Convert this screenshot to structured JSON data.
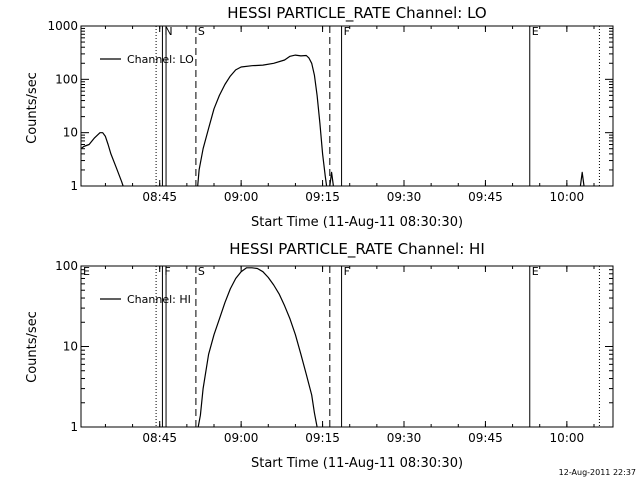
{
  "footer_timestamp": "12-Aug-2011 22:37",
  "chart_data": [
    {
      "type": "line",
      "title": "HESSI PARTICLE_RATE Channel: LO",
      "xlabel": "Start Time (11-Aug-11 08:30:30)",
      "ylabel": "Counts/sec",
      "yscale": "log",
      "ylim": [
        1,
        1000
      ],
      "xlim_minutes_after_0830": [
        0.5,
        98.5
      ],
      "x_ticks": [
        "08:45",
        "09:00",
        "09:15",
        "09:30",
        "09:45",
        "10:00"
      ],
      "y_ticks": [
        "1",
        "10",
        "100",
        "1000"
      ],
      "legend": "Channel: LO",
      "series": [
        {
          "name": "Channel: LO",
          "segments": [
            [
              [
                "08:30:30",
                5
              ],
              [
                "08:31",
                5.5
              ],
              [
                "08:32",
                6
              ],
              [
                "08:33",
                8
              ],
              [
                "08:34",
                10
              ],
              [
                "08:34:30",
                10
              ],
              [
                "08:35",
                8.5
              ],
              [
                "08:35:30",
                6
              ],
              [
                "08:36",
                4
              ],
              [
                "08:37",
                2.2
              ],
              [
                "08:38",
                1.2
              ],
              [
                "08:38:15",
                1
              ]
            ],
            [
              [
                "08:52",
                1
              ],
              [
                "08:52:15",
                2
              ],
              [
                "08:53",
                5
              ],
              [
                "08:54",
                12
              ],
              [
                "08:55",
                28
              ],
              [
                "08:56",
                50
              ],
              [
                "08:57",
                80
              ],
              [
                "08:58",
                115
              ],
              [
                "08:59",
                150
              ],
              [
                "09:00",
                170
              ],
              [
                "09:02",
                180
              ],
              [
                "09:04",
                185
              ],
              [
                "09:06",
                200
              ],
              [
                "09:08",
                230
              ],
              [
                "09:09",
                270
              ],
              [
                "09:10",
                285
              ],
              [
                "09:11",
                275
              ],
              [
                "09:12",
                280
              ],
              [
                "09:12:30",
                250
              ],
              [
                "09:13",
                200
              ],
              [
                "09:13:30",
                120
              ],
              [
                "09:14",
                50
              ],
              [
                "09:14:30",
                15
              ],
              [
                "09:15",
                4
              ],
              [
                "09:15:30",
                1.5
              ],
              [
                "09:15:45",
                1
              ]
            ],
            [
              [
                "09:16:20",
                1
              ],
              [
                "09:16:40",
                1.8
              ],
              [
                "09:17",
                1
              ]
            ],
            [
              [
                "10:02:30",
                1
              ],
              [
                "10:02:50",
                1.8
              ],
              [
                "10:03:10",
                1
              ]
            ]
          ]
        }
      ],
      "markers": [
        {
          "time": "08:44:20",
          "style": "dotted",
          "label": ""
        },
        {
          "time": "08:45:30",
          "style": "solid",
          "label": "N"
        },
        {
          "time": "08:46:10",
          "style": "solid",
          "label": ""
        },
        {
          "time": "08:51:40",
          "style": "dashed",
          "label": "S"
        },
        {
          "time": "09:16:20",
          "style": "dashed",
          "label": ""
        },
        {
          "time": "09:18:30",
          "style": "solid",
          "label": "F"
        },
        {
          "time": "09:53:10",
          "style": "solid",
          "label": "E"
        },
        {
          "time": "10:06:00",
          "style": "dotted",
          "label": ""
        }
      ]
    },
    {
      "type": "line",
      "title": "HESSI PARTICLE_RATE Channel: HI",
      "xlabel": "Start Time (11-Aug-11 08:30:30)",
      "ylabel": "Counts/sec",
      "yscale": "log",
      "ylim": [
        1,
        100
      ],
      "xlim_minutes_after_0830": [
        0.5,
        98.5
      ],
      "x_ticks": [
        "08:45",
        "09:00",
        "09:15",
        "09:30",
        "09:45",
        "10:00"
      ],
      "y_ticks": [
        "1",
        "10",
        "100"
      ],
      "legend": "Channel: HI",
      "corner_label": "E",
      "series": [
        {
          "name": "Channel: HI",
          "segments": [
            [
              [
                "08:52:05",
                1
              ],
              [
                "08:52:30",
                1.4
              ],
              [
                "08:53",
                3
              ],
              [
                "08:54",
                8
              ],
              [
                "08:55",
                14
              ],
              [
                "08:56",
                22
              ],
              [
                "08:57",
                35
              ],
              [
                "08:58",
                52
              ],
              [
                "08:59",
                70
              ],
              [
                "09:00",
                85
              ],
              [
                "09:01",
                95
              ],
              [
                "09:02",
                95
              ],
              [
                "09:03",
                93
              ],
              [
                "09:04",
                85
              ],
              [
                "09:05",
                72
              ],
              [
                "09:06",
                58
              ],
              [
                "09:07",
                45
              ],
              [
                "09:08",
                32
              ],
              [
                "09:09",
                22
              ],
              [
                "09:10",
                14
              ],
              [
                "09:11",
                8
              ],
              [
                "09:12",
                4.5
              ],
              [
                "09:13",
                2.5
              ],
              [
                "09:13:30",
                1.5
              ],
              [
                "09:14",
                1
              ]
            ]
          ]
        }
      ],
      "markers": [
        {
          "time": "08:44:20",
          "style": "dotted",
          "label": ""
        },
        {
          "time": "08:45:30",
          "style": "solid",
          "label": "F"
        },
        {
          "time": "08:46:10",
          "style": "solid",
          "label": ""
        },
        {
          "time": "08:51:40",
          "style": "dashed",
          "label": "S"
        },
        {
          "time": "09:16:20",
          "style": "dashed",
          "label": ""
        },
        {
          "time": "09:18:30",
          "style": "solid",
          "label": "F"
        },
        {
          "time": "09:53:10",
          "style": "solid",
          "label": "E"
        },
        {
          "time": "10:06:00",
          "style": "dotted",
          "label": ""
        }
      ]
    }
  ]
}
